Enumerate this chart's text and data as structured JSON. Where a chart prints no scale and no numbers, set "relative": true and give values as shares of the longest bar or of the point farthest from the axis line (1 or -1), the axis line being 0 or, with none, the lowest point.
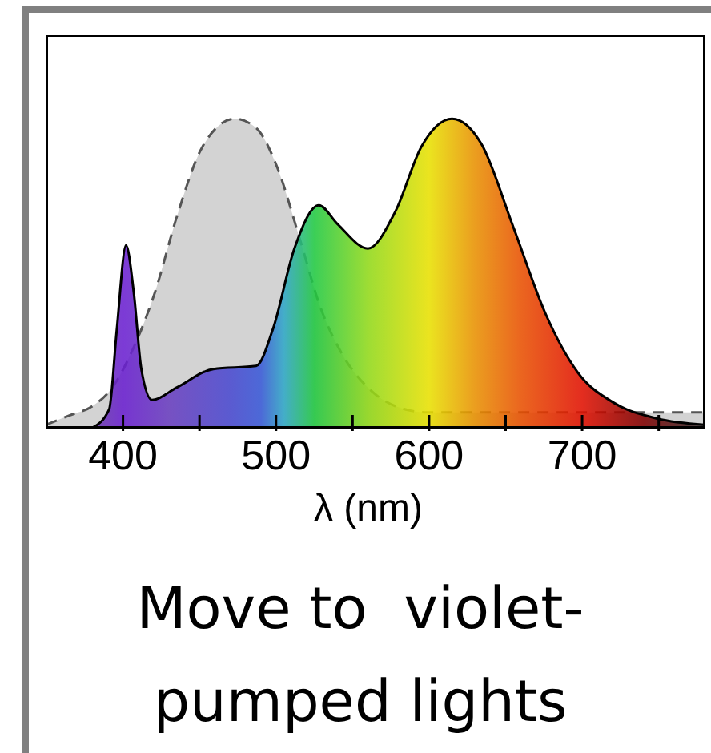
{
  "chart_data": {
    "type": "area",
    "relative": true,
    "xlabel": "λ (nm)",
    "annotations": [
      "Move to  violet-pumped lights"
    ],
    "xlim": [
      350,
      780
    ],
    "xticks": [
      400,
      {
        "value": 450,
        "label": null
      },
      500,
      {
        "value": 550,
        "label": null
      },
      600,
      {
        "value": 650,
        "label": null
      },
      700,
      {
        "value": 750,
        "label": null
      }
    ],
    "series": [
      {
        "color": "#d3d3d3",
        "line_style": "dashed",
        "x": [
          350,
          365,
          380,
          393,
          407,
          421,
          435,
          452,
          473,
          487,
          501,
          515,
          529,
          543,
          560,
          578,
          599,
          634,
          704,
          780
        ],
        "values": [
          0.01,
          0.04,
          0.07,
          0.13,
          0.26,
          0.44,
          0.68,
          0.91,
          1.0,
          0.97,
          0.84,
          0.62,
          0.39,
          0.24,
          0.13,
          0.07,
          0.05,
          0.05,
          0.05,
          0.05
        ]
      },
      {
        "color": "#000000",
        "line_style": "solid",
        "x": [
          380,
          391,
          396,
          402,
          407,
          412,
          419,
          435,
          459,
          487,
          498,
          512,
          528,
          540,
          560,
          578,
          595,
          615,
          634,
          655,
          676,
          697,
          721,
          749,
          780
        ],
        "values": [
          0,
          0.06,
          0.32,
          0.59,
          0.44,
          0.19,
          0.09,
          0.13,
          0.19,
          0.2,
          0.32,
          0.58,
          0.72,
          0.66,
          0.58,
          0.7,
          0.91,
          1.0,
          0.92,
          0.65,
          0.37,
          0.18,
          0.08,
          0.03,
          0.01
        ]
      }
    ]
  }
}
